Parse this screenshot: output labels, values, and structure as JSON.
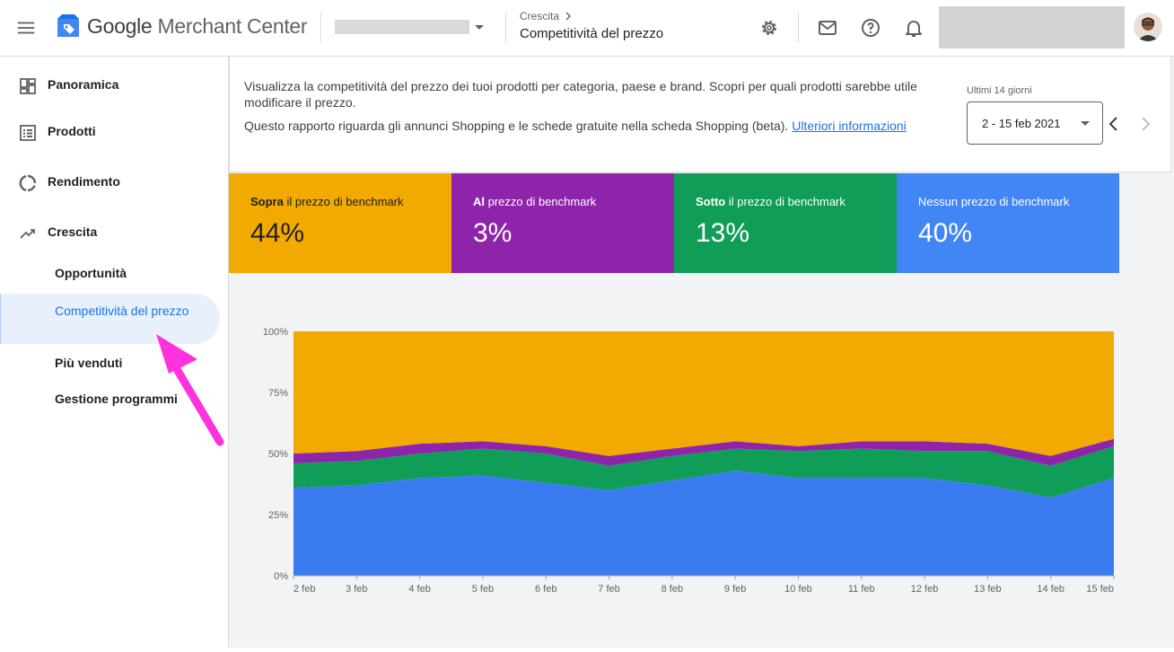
{
  "header": {
    "app_name_prefix": "Google",
    "app_name_suffix": "Merchant Center",
    "breadcrumb_parent": "Crescita",
    "page_title": "Competitività del prezzo"
  },
  "sidebar": {
    "items": [
      {
        "label": "Panoramica",
        "icon": "dashboard-icon"
      },
      {
        "label": "Prodotti",
        "icon": "list-icon"
      },
      {
        "label": "Rendimento",
        "icon": "donut-chart-icon"
      },
      {
        "label": "Crescita",
        "icon": "trending-up-icon"
      }
    ],
    "subitems": [
      {
        "label": "Opportunità"
      },
      {
        "label": "Competitività del prezzo",
        "active": true
      },
      {
        "label": "Più venduti"
      },
      {
        "label": "Gestione programmi"
      }
    ]
  },
  "info": {
    "line1": "Visualizza la competitività del prezzo dei tuoi prodotti per categoria, paese e brand. Scopri per quali prodotti sarebbe utile modificare il prezzo.",
    "line2": "Questo rapporto riguarda gli annunci Shopping e le schede gratuite nella scheda Shopping (beta).",
    "link": "Ulteriori informazioni"
  },
  "date_range": {
    "label": "Ultimi 14 giorni",
    "value": "2 - 15 feb 2021"
  },
  "tiles": [
    {
      "bold": "Sopra",
      "rest": " il prezzo di benchmark",
      "value": "44%",
      "color": "#f2a900"
    },
    {
      "bold": "Al",
      "rest": " prezzo di benchmark",
      "value": "3%",
      "color": "#8e24aa"
    },
    {
      "bold": "Sotto",
      "rest": " il prezzo di benchmark",
      "value": "13%",
      "color": "#0f9d58"
    },
    {
      "bold": "",
      "rest": "Nessun prezzo di benchmark",
      "value": "40%",
      "color": "#4285f4"
    }
  ],
  "chart_data": {
    "type": "area",
    "stacked": true,
    "categories": [
      "2 feb",
      "3 feb",
      "4 feb",
      "5 feb",
      "6 feb",
      "7 feb",
      "8 feb",
      "9 feb",
      "10 feb",
      "11 feb",
      "12 feb",
      "13 feb",
      "14 feb",
      "15 feb"
    ],
    "y_ticks": [
      "0%",
      "25%",
      "50%",
      "75%",
      "100%"
    ],
    "ylim": [
      0,
      100
    ],
    "series": [
      {
        "name": "Nessun prezzo di benchmark",
        "color": "#3b7bf0",
        "values": [
          36,
          37,
          40,
          41,
          38,
          35,
          39,
          43,
          40,
          40,
          40,
          37,
          32,
          40
        ]
      },
      {
        "name": "Sotto il prezzo di benchmark",
        "color": "#0f9d58",
        "values": [
          10,
          10,
          10,
          11,
          12,
          10,
          10,
          9,
          11,
          12,
          11,
          14,
          13,
          13
        ]
      },
      {
        "name": "Al prezzo di benchmark",
        "color": "#8e24aa",
        "values": [
          4,
          4,
          4,
          3,
          3,
          4,
          3,
          3,
          2,
          3,
          4,
          3,
          4,
          3
        ]
      },
      {
        "name": "Sopra il prezzo di benchmark",
        "color": "#f2a900",
        "values": [
          50,
          49,
          46,
          45,
          47,
          51,
          48,
          45,
          47,
          45,
          45,
          46,
          51,
          44
        ]
      }
    ]
  }
}
